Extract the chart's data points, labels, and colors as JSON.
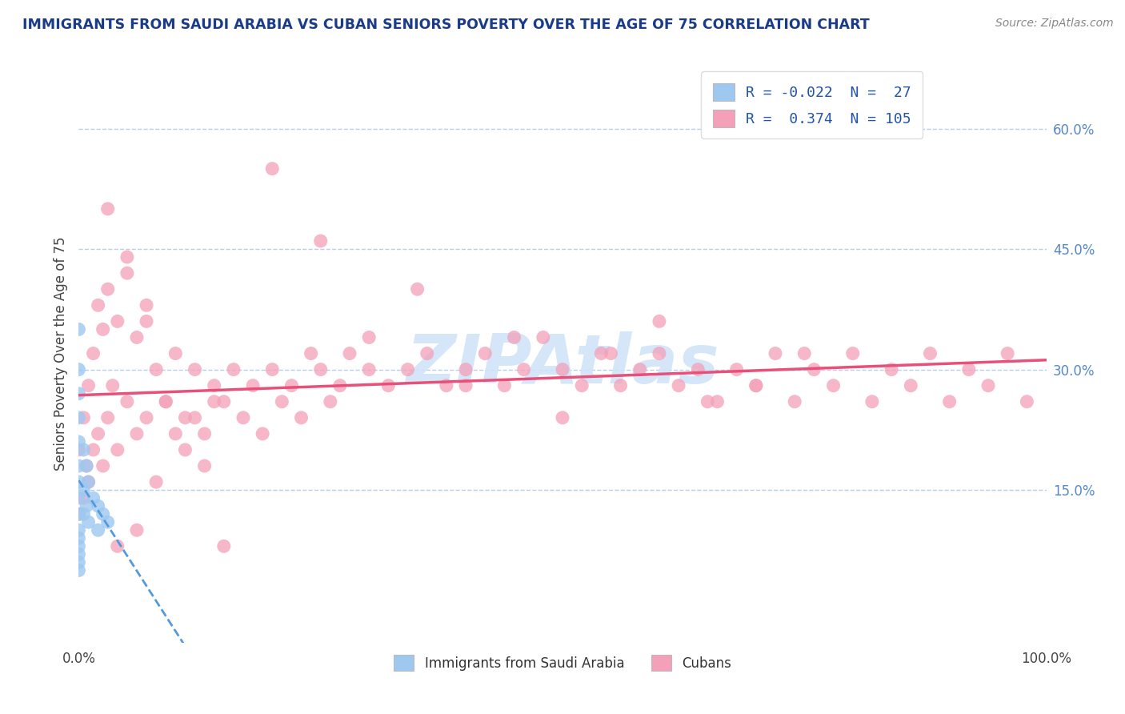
{
  "title": "IMMIGRANTS FROM SAUDI ARABIA VS CUBAN SENIORS POVERTY OVER THE AGE OF 75 CORRELATION CHART",
  "source": "Source: ZipAtlas.com",
  "ylabel": "Seniors Poverty Over the Age of 75",
  "right_yticks": [
    "15.0%",
    "30.0%",
    "45.0%",
    "60.0%"
  ],
  "right_ytick_vals": [
    0.15,
    0.3,
    0.45,
    0.6
  ],
  "legend_saudi_r": "-0.022",
  "legend_saudi_n": "27",
  "legend_cuban_r": "0.374",
  "legend_cuban_n": "105",
  "legend_label_saudi": "Immigrants from Saudi Arabia",
  "legend_label_cuban": "Cubans",
  "saudi_color": "#9ec8f0",
  "cuban_color": "#f4a0b8",
  "saudi_line_color": "#5599dd",
  "cuban_line_color": "#e8507a",
  "background_color": "#ffffff",
  "grid_color": "#b8cfe8",
  "title_color": "#1a3a8a",
  "watermark_color": "#d0e4f8",
  "xlim": [
    0.0,
    1.0
  ],
  "ylim": [
    -0.04,
    0.68
  ],
  "saudi_scatter_x": [
    0.0,
    0.0,
    0.0,
    0.0,
    0.0,
    0.0,
    0.0,
    0.0,
    0.0,
    0.0,
    0.0,
    0.0,
    0.0,
    0.0,
    0.0,
    0.005,
    0.005,
    0.005,
    0.008,
    0.008,
    0.01,
    0.01,
    0.015,
    0.02,
    0.02,
    0.025,
    0.03
  ],
  "saudi_scatter_y": [
    0.35,
    0.3,
    0.27,
    0.24,
    0.21,
    0.18,
    0.16,
    0.14,
    0.12,
    0.1,
    0.09,
    0.08,
    0.07,
    0.06,
    0.05,
    0.2,
    0.15,
    0.12,
    0.18,
    0.13,
    0.16,
    0.11,
    0.14,
    0.13,
    0.1,
    0.12,
    0.11
  ],
  "cuban_scatter_x": [
    0.0,
    0.0,
    0.005,
    0.005,
    0.008,
    0.01,
    0.01,
    0.015,
    0.015,
    0.02,
    0.02,
    0.025,
    0.025,
    0.03,
    0.03,
    0.035,
    0.04,
    0.04,
    0.05,
    0.05,
    0.06,
    0.06,
    0.07,
    0.07,
    0.08,
    0.09,
    0.1,
    0.11,
    0.12,
    0.13,
    0.14,
    0.15,
    0.16,
    0.17,
    0.18,
    0.19,
    0.2,
    0.21,
    0.22,
    0.23,
    0.24,
    0.25,
    0.26,
    0.27,
    0.28,
    0.3,
    0.32,
    0.34,
    0.36,
    0.38,
    0.4,
    0.42,
    0.44,
    0.46,
    0.48,
    0.5,
    0.52,
    0.54,
    0.56,
    0.58,
    0.6,
    0.62,
    0.64,
    0.66,
    0.68,
    0.7,
    0.72,
    0.74,
    0.76,
    0.78,
    0.8,
    0.82,
    0.84,
    0.86,
    0.88,
    0.9,
    0.92,
    0.94,
    0.96,
    0.98,
    0.03,
    0.04,
    0.05,
    0.06,
    0.07,
    0.08,
    0.09,
    0.1,
    0.11,
    0.12,
    0.13,
    0.14,
    0.15,
    0.2,
    0.25,
    0.3,
    0.35,
    0.4,
    0.45,
    0.5,
    0.55,
    0.6,
    0.65,
    0.7,
    0.75
  ],
  "cuban_scatter_y": [
    0.2,
    0.12,
    0.24,
    0.14,
    0.18,
    0.28,
    0.16,
    0.32,
    0.2,
    0.38,
    0.22,
    0.35,
    0.18,
    0.4,
    0.24,
    0.28,
    0.36,
    0.2,
    0.42,
    0.26,
    0.34,
    0.22,
    0.38,
    0.24,
    0.3,
    0.26,
    0.32,
    0.24,
    0.3,
    0.22,
    0.28,
    0.26,
    0.3,
    0.24,
    0.28,
    0.22,
    0.3,
    0.26,
    0.28,
    0.24,
    0.32,
    0.3,
    0.26,
    0.28,
    0.32,
    0.34,
    0.28,
    0.3,
    0.32,
    0.28,
    0.3,
    0.32,
    0.28,
    0.3,
    0.34,
    0.3,
    0.28,
    0.32,
    0.28,
    0.3,
    0.32,
    0.28,
    0.3,
    0.26,
    0.3,
    0.28,
    0.32,
    0.26,
    0.3,
    0.28,
    0.32,
    0.26,
    0.3,
    0.28,
    0.32,
    0.26,
    0.3,
    0.28,
    0.32,
    0.26,
    0.5,
    0.08,
    0.44,
    0.1,
    0.36,
    0.16,
    0.26,
    0.22,
    0.2,
    0.24,
    0.18,
    0.26,
    0.08,
    0.55,
    0.46,
    0.3,
    0.4,
    0.28,
    0.34,
    0.24,
    0.32,
    0.36,
    0.26,
    0.28,
    0.32
  ]
}
